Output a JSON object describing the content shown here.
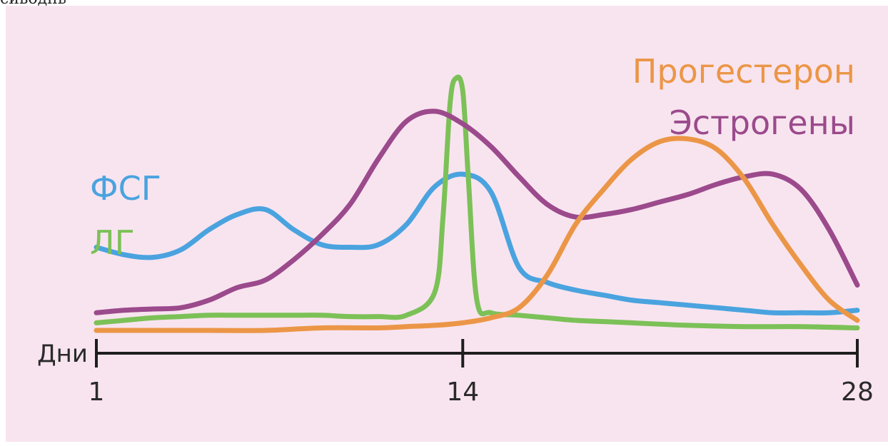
{
  "top_clipped_text": "сиводнь",
  "chart_data": {
    "type": "line",
    "x_label": "Дни",
    "x_ticks": [
      1,
      14,
      28
    ],
    "xlim": [
      1,
      28
    ],
    "grid": false,
    "legend_placement": "labels near curves",
    "background": "#f8e4ef",
    "series": [
      {
        "name": "ФСГ",
        "color": "#4aa3df",
        "points": [
          [
            1,
            0.33
          ],
          [
            2,
            0.3
          ],
          [
            3,
            0.29
          ],
          [
            4,
            0.32
          ],
          [
            5,
            0.4
          ],
          [
            6,
            0.46
          ],
          [
            7,
            0.48
          ],
          [
            8,
            0.4
          ],
          [
            9,
            0.34
          ],
          [
            10,
            0.33
          ],
          [
            11,
            0.34
          ],
          [
            12,
            0.42
          ],
          [
            13,
            0.57
          ],
          [
            14,
            0.62
          ],
          [
            15,
            0.55
          ],
          [
            16,
            0.25
          ],
          [
            17,
            0.19
          ],
          [
            18,
            0.16
          ],
          [
            19,
            0.14
          ],
          [
            20,
            0.12
          ],
          [
            21,
            0.11
          ],
          [
            22,
            0.1
          ],
          [
            23,
            0.09
          ],
          [
            24,
            0.08
          ],
          [
            25,
            0.07
          ],
          [
            26,
            0.07
          ],
          [
            27,
            0.07
          ],
          [
            28,
            0.08
          ]
        ]
      },
      {
        "name": "ЛГ",
        "color": "#7cc157",
        "points": [
          [
            1,
            0.03
          ],
          [
            2,
            0.04
          ],
          [
            3,
            0.05
          ],
          [
            4,
            0.055
          ],
          [
            5,
            0.06
          ],
          [
            6,
            0.06
          ],
          [
            7,
            0.06
          ],
          [
            8,
            0.06
          ],
          [
            9,
            0.06
          ],
          [
            10,
            0.055
          ],
          [
            11,
            0.055
          ],
          [
            12,
            0.06
          ],
          [
            13,
            0.15
          ],
          [
            13.3,
            0.45
          ],
          [
            13.55,
            0.9
          ],
          [
            13.75,
            1.0
          ],
          [
            14,
            0.95
          ],
          [
            14.2,
            0.6
          ],
          [
            14.5,
            0.12
          ],
          [
            15,
            0.07
          ],
          [
            16,
            0.06
          ],
          [
            17,
            0.05
          ],
          [
            18,
            0.04
          ],
          [
            19,
            0.035
          ],
          [
            20,
            0.03
          ],
          [
            22,
            0.02
          ],
          [
            24,
            0.015
          ],
          [
            26,
            0.015
          ],
          [
            28,
            0.01
          ]
        ]
      },
      {
        "name": "Эстрогены",
        "color": "#9b4a8c",
        "points": [
          [
            1,
            0.07
          ],
          [
            2,
            0.08
          ],
          [
            3,
            0.085
          ],
          [
            4,
            0.09
          ],
          [
            5,
            0.12
          ],
          [
            6,
            0.17
          ],
          [
            7,
            0.2
          ],
          [
            8,
            0.28
          ],
          [
            9,
            0.38
          ],
          [
            10,
            0.5
          ],
          [
            11,
            0.68
          ],
          [
            12,
            0.83
          ],
          [
            13,
            0.87
          ],
          [
            14,
            0.82
          ],
          [
            15,
            0.73
          ],
          [
            16,
            0.61
          ],
          [
            17,
            0.5
          ],
          [
            18,
            0.45
          ],
          [
            19,
            0.46
          ],
          [
            20,
            0.48
          ],
          [
            21,
            0.51
          ],
          [
            22,
            0.54
          ],
          [
            23,
            0.58
          ],
          [
            24,
            0.61
          ],
          [
            25,
            0.62
          ],
          [
            26,
            0.56
          ],
          [
            27,
            0.4
          ],
          [
            28,
            0.18
          ]
        ]
      },
      {
        "name": "Прогестерон",
        "color": "#eb9647",
        "points": [
          [
            1,
            0.0
          ],
          [
            3,
            0.0
          ],
          [
            5,
            0.0
          ],
          [
            7,
            0.0
          ],
          [
            9,
            0.01
          ],
          [
            11,
            0.01
          ],
          [
            12,
            0.015
          ],
          [
            13,
            0.02
          ],
          [
            14,
            0.03
          ],
          [
            15,
            0.05
          ],
          [
            16,
            0.09
          ],
          [
            17,
            0.22
          ],
          [
            18,
            0.42
          ],
          [
            19,
            0.56
          ],
          [
            20,
            0.68
          ],
          [
            21,
            0.75
          ],
          [
            22,
            0.76
          ],
          [
            23,
            0.72
          ],
          [
            24,
            0.6
          ],
          [
            25,
            0.42
          ],
          [
            26,
            0.26
          ],
          [
            27,
            0.12
          ],
          [
            28,
            0.04
          ]
        ]
      }
    ],
    "label_colors": {
      "axis": "#1e1e1e",
      "text": "#2a2a2a"
    }
  }
}
